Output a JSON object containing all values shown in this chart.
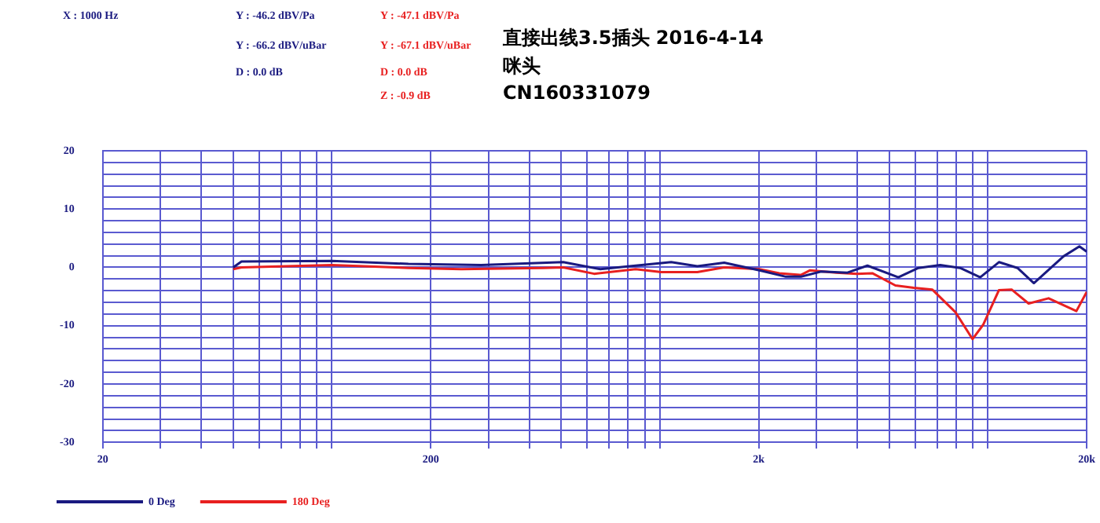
{
  "chart_data": {
    "type": "line",
    "title": "直接出线3.5插头 2016-4-14",
    "subtitle": "咪头",
    "annotations": [
      "X : 1000 Hz",
      "Y : -46.2 dBV/Pa",
      "Y : -66.2 dBV/uBar",
      "D : 0.0 dB",
      "Y : -47.1 dBV/Pa",
      "Y : -67.1 dBV/uBar",
      "D : 0.0 dB",
      "Z : -0.9 dB",
      "CN160331079"
    ],
    "log": "x",
    "grid": true,
    "legend": "bottom",
    "marker": "none",
    "line_style": "solid",
    "xlim": [
      20,
      20000
    ],
    "xticks": [
      20,
      {
        "value": 30,
        "label": null
      },
      {
        "value": 40,
        "label": null
      },
      {
        "value": 50,
        "label": null
      },
      {
        "value": 60,
        "label": null
      },
      {
        "value": 70,
        "label": null
      },
      {
        "value": 80,
        "label": null
      },
      {
        "value": 90,
        "label": null
      },
      {
        "value": 100,
        "label": null
      },
      200,
      {
        "value": 300,
        "label": null
      },
      {
        "value": 400,
        "label": null
      },
      {
        "value": 500,
        "label": null
      },
      {
        "value": 600,
        "label": null
      },
      {
        "value": 700,
        "label": null
      },
      {
        "value": 800,
        "label": null
      },
      {
        "value": 900,
        "label": null
      },
      {
        "value": 1000,
        "label": null
      },
      {
        "value": 2000,
        "label": "2k"
      },
      {
        "value": 3000,
        "label": null
      },
      {
        "value": 4000,
        "label": null
      },
      {
        "value": 5000,
        "label": null
      },
      {
        "value": 6000,
        "label": null
      },
      {
        "value": 7000,
        "label": null
      },
      {
        "value": 8000,
        "label": null
      },
      {
        "value": 9000,
        "label": null
      },
      {
        "value": 10000,
        "label": null
      },
      {
        "value": 20000,
        "label": "20k"
      }
    ],
    "ylim": [
      -30,
      20
    ],
    "yticks": [
      -30,
      {
        "value": -28,
        "label": null
      },
      {
        "value": -26,
        "label": null
      },
      {
        "value": -24,
        "label": null
      },
      {
        "value": -22,
        "label": null
      },
      -20,
      {
        "value": -18,
        "label": null
      },
      {
        "value": -16,
        "label": null
      },
      {
        "value": -14,
        "label": null
      },
      {
        "value": -12,
        "label": null
      },
      -10,
      {
        "value": -8,
        "label": null
      },
      {
        "value": -6,
        "label": null
      },
      {
        "value": -4,
        "label": null
      },
      {
        "value": -2,
        "label": null
      },
      0,
      {
        "value": 2,
        "label": null
      },
      {
        "value": 4,
        "label": null
      },
      {
        "value": 6,
        "label": null
      },
      {
        "value": 8,
        "label": null
      },
      10,
      {
        "value": 12,
        "label": null
      },
      {
        "value": 14,
        "label": null
      },
      {
        "value": 16,
        "label": null
      },
      {
        "value": 18,
        "label": null
      },
      20
    ],
    "series": [
      {
        "name": "0 Deg",
        "color": "#1a1a80",
        "x": [
          50,
          53,
          100,
          171,
          285,
          507,
          658,
          843,
          1082,
          1300,
          1570,
          2010,
          2420,
          2690,
          3100,
          3730,
          4290,
          5330,
          6140,
          7150,
          8220,
          9470,
          10800,
          12300,
          13800,
          17000,
          19000,
          20000
        ],
        "values": [
          0,
          1,
          1.1,
          0.6,
          0.4,
          0.9,
          -0.3,
          0.3,
          0.9,
          0.2,
          0.8,
          -0.5,
          -1.6,
          -1.6,
          -0.7,
          -0.9,
          0.3,
          -1.7,
          -0.1,
          0.4,
          -0.1,
          -1.7,
          0.9,
          -0.1,
          -2.7,
          1.9,
          3.6,
          2.7
        ]
      },
      {
        "name": "180 Deg",
        "color": "#e82020",
        "x": [
          50,
          53,
          100,
          171,
          248,
          440,
          507,
          630,
          843,
          1010,
          1300,
          1570,
          2010,
          2310,
          2690,
          2870,
          3450,
          3980,
          4440,
          5220,
          5940,
          6760,
          7960,
          8970,
          9680,
          10800,
          11800,
          13300,
          15300,
          18600,
          20000
        ],
        "values": [
          -0.3,
          0,
          0.4,
          -0.1,
          -0.3,
          -0.1,
          0,
          -1.1,
          -0.3,
          -0.8,
          -0.8,
          0,
          -0.3,
          -1,
          -1.3,
          -0.5,
          -0.9,
          -1.1,
          -1,
          -3.1,
          -3.5,
          -3.8,
          -7.7,
          -12.3,
          -9.8,
          -3.9,
          -3.8,
          -6.2,
          -5.3,
          -7.5,
          -4.2
        ]
      }
    ]
  }
}
